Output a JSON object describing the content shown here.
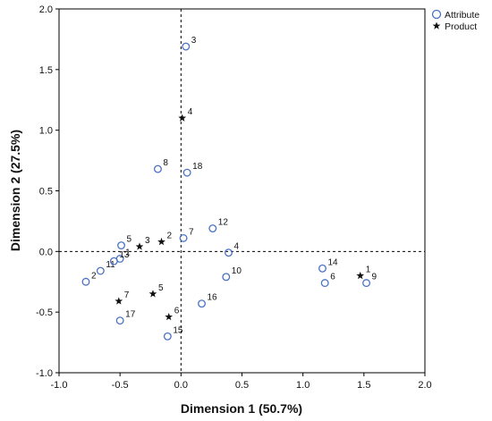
{
  "chart_data": {
    "type": "scatter",
    "xlabel": "Dimension 1 (50.7%)",
    "ylabel": "Dimension 2 (27.5%)",
    "xlim": [
      -1.0,
      2.0
    ],
    "ylim": [
      -1.0,
      2.0
    ],
    "x_ticks": [
      "-1.0",
      "-0.5",
      "0.0",
      "0.5",
      "1.0",
      "1.5",
      "2.0"
    ],
    "y_ticks": [
      "-1.0",
      "-0.5",
      "0.0",
      "0.5",
      "1.0",
      "1.5",
      "2.0"
    ],
    "reference_lines": {
      "x": 0,
      "y": 0,
      "style": "dashed"
    },
    "legend_position": "top-right",
    "colors": {
      "attribute": "#4a72c4",
      "product": "#111111"
    },
    "series": [
      {
        "name": "Attribute",
        "marker": "circle",
        "points": [
          {
            "label": "1",
            "x": -0.5,
            "y": -0.06
          },
          {
            "label": "2",
            "x": -0.78,
            "y": -0.25
          },
          {
            "label": "3",
            "x": 0.04,
            "y": 1.69
          },
          {
            "label": "4",
            "x": 0.39,
            "y": -0.01
          },
          {
            "label": "5",
            "x": -0.49,
            "y": 0.05
          },
          {
            "label": "6",
            "x": 1.18,
            "y": -0.26
          },
          {
            "label": "7",
            "x": 0.02,
            "y": 0.11
          },
          {
            "label": "8",
            "x": -0.19,
            "y": 0.68
          },
          {
            "label": "9",
            "x": 1.52,
            "y": -0.26
          },
          {
            "label": "10",
            "x": 0.37,
            "y": -0.21
          },
          {
            "label": "11",
            "x": -0.66,
            "y": -0.16
          },
          {
            "label": "12",
            "x": 0.26,
            "y": 0.19
          },
          {
            "label": "13",
            "x": -0.55,
            "y": -0.08
          },
          {
            "label": "14",
            "x": 1.16,
            "y": -0.14
          },
          {
            "label": "15",
            "x": -0.11,
            "y": -0.7
          },
          {
            "label": "16",
            "x": 0.17,
            "y": -0.43
          },
          {
            "label": "17",
            "x": -0.5,
            "y": -0.57
          },
          {
            "label": "18",
            "x": 0.05,
            "y": 0.65
          }
        ]
      },
      {
        "name": "Product",
        "marker": "star",
        "points": [
          {
            "label": "1",
            "x": 1.47,
            "y": -0.2
          },
          {
            "label": "2",
            "x": -0.16,
            "y": 0.08
          },
          {
            "label": "3",
            "x": -0.34,
            "y": 0.04
          },
          {
            "label": "4",
            "x": 0.01,
            "y": 1.1
          },
          {
            "label": "5",
            "x": -0.23,
            "y": -0.35
          },
          {
            "label": "6",
            "x": -0.1,
            "y": -0.54
          },
          {
            "label": "7",
            "x": -0.51,
            "y": -0.41
          }
        ]
      }
    ]
  }
}
